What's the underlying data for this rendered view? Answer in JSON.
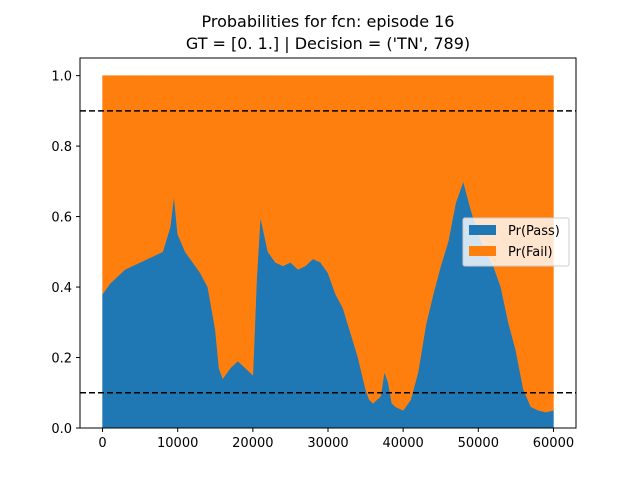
{
  "chart_data": {
    "type": "area",
    "title": "Probabilities for fcn: episode 16",
    "subtitle": "GT = [0. 1.] | Decision = ('TN', 789)",
    "xlabel": "",
    "ylabel": "",
    "xlim": [
      -3000,
      63000
    ],
    "ylim": [
      0.0,
      1.05
    ],
    "x_ticks": [
      0,
      10000,
      20000,
      30000,
      40000,
      50000,
      60000
    ],
    "y_ticks": [
      0.0,
      0.2,
      0.4,
      0.6,
      0.8,
      1.0
    ],
    "x_tick_labels": [
      "0",
      "10000",
      "20000",
      "30000",
      "40000",
      "50000",
      "60000"
    ],
    "y_tick_labels": [
      "0.0",
      "0.2",
      "0.4",
      "0.6",
      "0.8",
      "1.0"
    ],
    "stacked": true,
    "x": [
      0,
      1000,
      2000,
      3000,
      4000,
      5000,
      6000,
      7000,
      8000,
      9000,
      9500,
      10000,
      11000,
      12000,
      13000,
      14000,
      15000,
      15500,
      16000,
      17000,
      18000,
      19000,
      20000,
      20500,
      21000,
      22000,
      23000,
      24000,
      25000,
      26000,
      27000,
      28000,
      29000,
      30000,
      31000,
      32000,
      33000,
      34000,
      35000,
      35500,
      36000,
      37000,
      37500,
      38000,
      38500,
      39000,
      40000,
      41000,
      42000,
      43000,
      44000,
      45000,
      46000,
      47000,
      48000,
      49000,
      50000,
      51000,
      52000,
      53000,
      54000,
      55000,
      56000,
      57000,
      58000,
      59000,
      60000
    ],
    "series": [
      {
        "name": "Pr(Pass)",
        "color": "#1f77b4",
        "values": [
          0.38,
          0.41,
          0.43,
          0.45,
          0.46,
          0.47,
          0.48,
          0.49,
          0.5,
          0.57,
          0.66,
          0.55,
          0.5,
          0.47,
          0.44,
          0.4,
          0.28,
          0.17,
          0.14,
          0.17,
          0.19,
          0.17,
          0.15,
          0.42,
          0.6,
          0.5,
          0.47,
          0.46,
          0.47,
          0.45,
          0.46,
          0.48,
          0.47,
          0.44,
          0.38,
          0.34,
          0.27,
          0.2,
          0.11,
          0.08,
          0.07,
          0.09,
          0.16,
          0.13,
          0.07,
          0.06,
          0.05,
          0.08,
          0.16,
          0.29,
          0.38,
          0.46,
          0.53,
          0.64,
          0.7,
          0.62,
          0.55,
          0.5,
          0.46,
          0.4,
          0.3,
          0.22,
          0.11,
          0.06,
          0.05,
          0.045,
          0.05
        ]
      },
      {
        "name": "Pr(Fail)",
        "color": "#ff7f0e",
        "values": [
          0.62,
          0.59,
          0.57,
          0.55,
          0.54,
          0.53,
          0.52,
          0.51,
          0.5,
          0.43,
          0.34,
          0.45,
          0.5,
          0.53,
          0.56,
          0.6,
          0.72,
          0.83,
          0.86,
          0.83,
          0.81,
          0.83,
          0.85,
          0.58,
          0.4,
          0.5,
          0.53,
          0.54,
          0.53,
          0.55,
          0.54,
          0.52,
          0.53,
          0.56,
          0.62,
          0.66,
          0.73,
          0.8,
          0.89,
          0.92,
          0.93,
          0.91,
          0.84,
          0.87,
          0.93,
          0.94,
          0.95,
          0.92,
          0.84,
          0.71,
          0.62,
          0.54,
          0.47,
          0.36,
          0.3,
          0.38,
          0.45,
          0.5,
          0.54,
          0.6,
          0.7,
          0.78,
          0.89,
          0.94,
          0.95,
          0.955,
          0.95
        ]
      }
    ],
    "hlines": [
      0.9,
      0.1
    ],
    "hline_style": "dashed black",
    "legend_placement": "center-right",
    "grid": false
  }
}
